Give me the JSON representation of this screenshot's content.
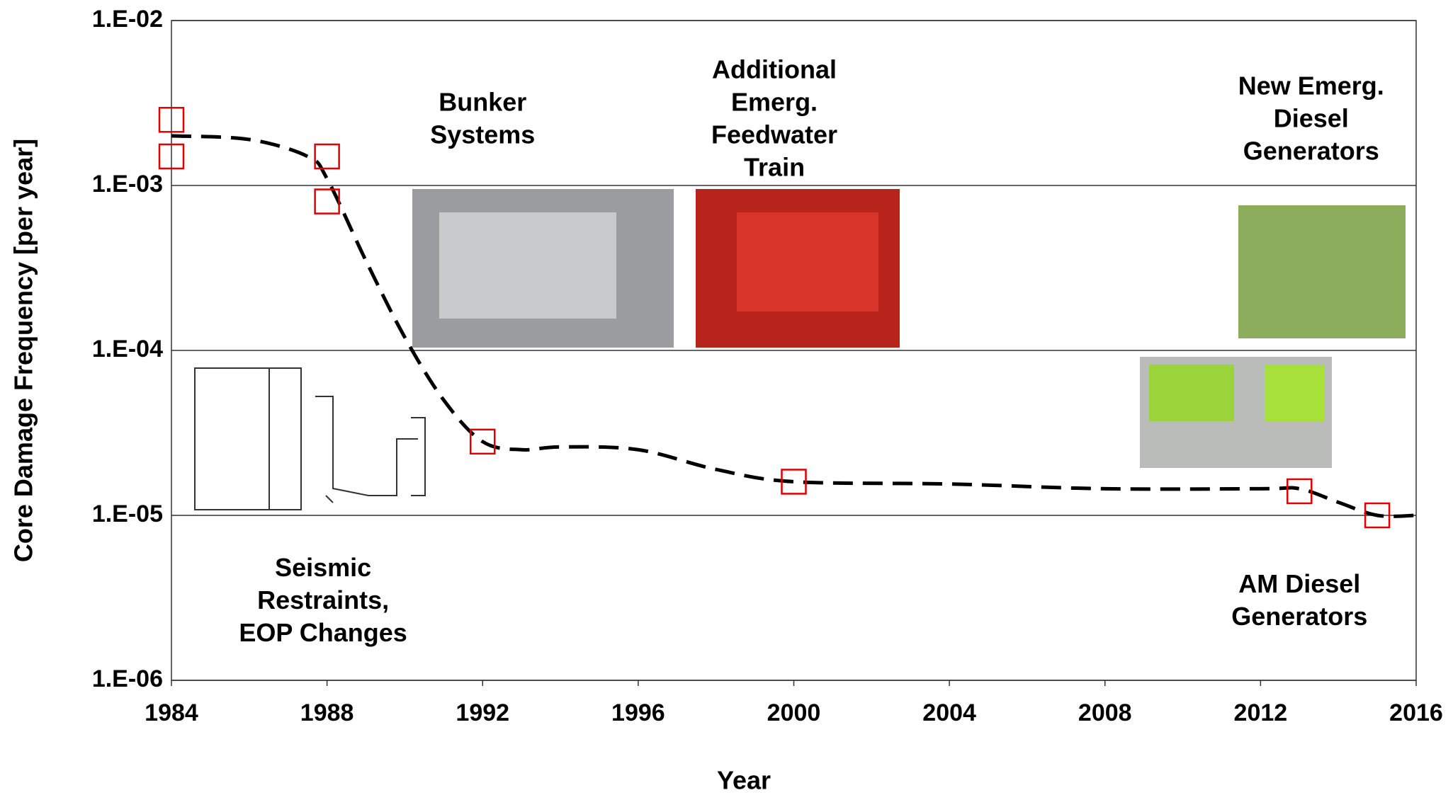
{
  "chart_data": {
    "type": "line",
    "x_label": "Year",
    "y_label": "Core Damage Frequency [per year]",
    "log_y": true,
    "grid": true,
    "xlim": [
      1984,
      2016
    ],
    "xticks": [
      1984,
      1988,
      1992,
      1996,
      2000,
      2004,
      2008,
      2012,
      2016
    ],
    "ylim": [
      1e-06,
      0.01
    ],
    "yticks": [
      {
        "value": 1e-06,
        "label": "1.E-06"
      },
      {
        "value": 1e-05,
        "label": "1.E-05"
      },
      {
        "value": 0.0001,
        "label": "1.E-04"
      },
      {
        "value": 0.001,
        "label": "1.E-03"
      },
      {
        "value": 0.01,
        "label": "1.E-02"
      }
    ],
    "series": [
      {
        "type": "line",
        "color": "#000000",
        "x": [
          1984,
          1986,
          1987.5,
          1988,
          1989,
          1990,
          1991,
          1992,
          1993,
          1994,
          1996,
          1998,
          2000,
          2004,
          2008,
          2012,
          2013,
          2014,
          2015,
          2016
        ],
        "values": [
          0.002,
          0.0019,
          0.0015,
          0.0011,
          0.00035,
          0.00012,
          5e-05,
          2.8e-05,
          2.5e-05,
          2.6e-05,
          2.5e-05,
          1.9e-05,
          1.6e-05,
          1.55e-05,
          1.45e-05,
          1.45e-05,
          1.45e-05,
          1.2e-05,
          1e-05,
          1e-05
        ]
      },
      {
        "type": "scatter",
        "color": "#e00000",
        "x": [
          1984,
          1984,
          1988,
          1988,
          1992,
          2000,
          2013,
          2015
        ],
        "values": [
          0.0025,
          0.0015,
          0.0015,
          0.0008,
          2.8e-05,
          1.6e-05,
          1.4e-05,
          1e-05
        ]
      }
    ],
    "annotations": [
      {
        "lines": [
          "Bunker",
          "Systems"
        ],
        "x": 1992,
        "y": 0.0025
      },
      {
        "lines": [
          "Additional",
          "Emerg.",
          "Feedwater",
          "Train"
        ],
        "x": 1999.5,
        "y": 0.0025
      },
      {
        "lines": [
          "New Emerg.",
          "Diesel",
          "Generators"
        ],
        "x": 2013.3,
        "y": 0.0025
      },
      {
        "lines": [
          "Seismic",
          "Restraints,",
          "EOP Changes"
        ],
        "x": 1987.9,
        "y": 3e-06
      },
      {
        "lines": [
          "AM Diesel",
          "Generators"
        ],
        "x": 2013,
        "y": 3e-06
      }
    ]
  }
}
